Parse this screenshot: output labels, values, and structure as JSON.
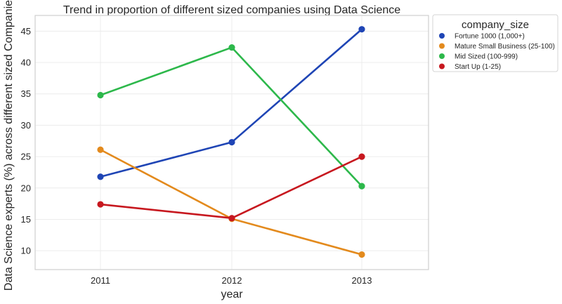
{
  "chart_data": {
    "type": "line",
    "title": "Trend in proportion of different sized companies using Data Science",
    "xlabel": "year",
    "ylabel": "Data Science experts (%) across different sized Companies",
    "categories": [
      "2011",
      "2012",
      "2013"
    ],
    "ylim": [
      7,
      47.5
    ],
    "yticks": [
      10,
      15,
      20,
      25,
      30,
      35,
      40,
      45
    ],
    "grid": true,
    "legend": {
      "title": "company_size",
      "placement": "outside-top-right"
    },
    "series": [
      {
        "name": "Fortune 1000 (1,000+)",
        "color": "#1f45b5",
        "values": [
          21.8,
          27.3,
          45.3
        ]
      },
      {
        "name": "Mature Small Business (25-100)",
        "color": "#e38a1d",
        "values": [
          26.1,
          15.1,
          9.4
        ]
      },
      {
        "name": "Mid Sized (100-999)",
        "color": "#2db84b",
        "values": [
          34.8,
          42.4,
          20.3
        ]
      },
      {
        "name": "Start Up (1-25)",
        "color": "#c7181f",
        "values": [
          17.4,
          15.2,
          25.0
        ]
      }
    ]
  }
}
